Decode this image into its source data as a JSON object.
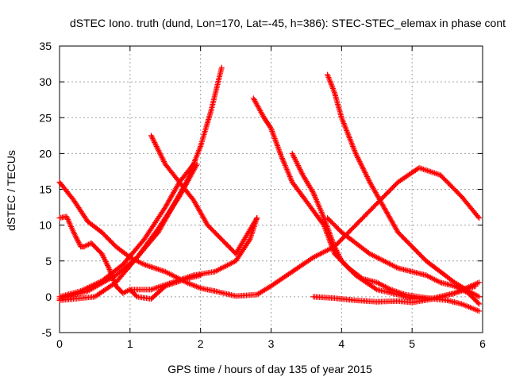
{
  "chart_data": {
    "type": "scatter",
    "title": "dSTEC Iono. truth (dund, Lon=170, Lat=-45, h=386): STEC-STEC_elemax in phase cont",
    "xlabel": "GPS time / hours of day 135 of year 2015",
    "ylabel": "dSTEC  / TECUs",
    "xlim": [
      0,
      6
    ],
    "ylim": [
      -5,
      35
    ],
    "xticks": [
      "0",
      "1",
      "2",
      "3",
      "4",
      "5",
      "6"
    ],
    "yticks": [
      "-5",
      "0",
      "5",
      "10",
      "15",
      "20",
      "25",
      "30",
      "35"
    ],
    "grid": true,
    "marker": "+",
    "color": "#ff0000",
    "series": [
      {
        "x": [
          0.0,
          0.3,
          0.6,
          0.9,
          1.2,
          1.5,
          1.7,
          1.9
        ],
        "y": [
          0.0,
          0.8,
          2.2,
          4.5,
          8.0,
          12.5,
          16.0,
          18.5
        ]
      },
      {
        "x": [
          0.0,
          0.4,
          0.8,
          1.1,
          1.4,
          1.6,
          1.8,
          2.0,
          2.15,
          2.3
        ],
        "y": [
          -0.3,
          0.8,
          3.0,
          5.5,
          9.0,
          12.5,
          16.0,
          21.0,
          26.0,
          32.0
        ]
      },
      {
        "x": [
          0.0,
          0.5,
          0.8,
          1.1,
          1.4,
          1.7,
          1.95
        ],
        "y": [
          -0.5,
          0.0,
          2.0,
          5.5,
          9.5,
          14.0,
          18.5
        ]
      },
      {
        "x": [
          0.0,
          0.1,
          0.2,
          0.3,
          0.35,
          0.45,
          0.6,
          0.7,
          0.8,
          0.9,
          1.0,
          1.1,
          1.3,
          1.5,
          1.8,
          2.0
        ],
        "y": [
          11.0,
          11.2,
          9.0,
          7.0,
          7.0,
          7.5,
          6.0,
          4.0,
          1.5,
          0.5,
          1.0,
          0.0,
          -0.3,
          1.5,
          2.5,
          3.0
        ]
      },
      {
        "x": [
          0.0,
          0.2,
          0.4,
          0.6,
          0.8,
          1.0,
          1.2,
          1.5,
          1.8,
          2.0,
          2.2,
          2.5,
          2.8,
          3.0,
          3.3,
          3.6,
          3.9,
          4.2,
          4.5,
          4.8,
          5.1,
          5.4,
          5.7,
          5.95
        ],
        "y": [
          16.0,
          13.5,
          10.5,
          9.0,
          7.0,
          5.5,
          4.5,
          3.5,
          2.0,
          1.2,
          0.8,
          0.1,
          0.3,
          1.5,
          3.5,
          5.5,
          7.0,
          10.0,
          13.0,
          16.0,
          18.0,
          17.0,
          14.0,
          11.0
        ]
      },
      {
        "x": [
          1.3,
          1.5,
          1.7,
          1.9,
          2.1,
          2.3,
          2.5,
          2.8
        ],
        "y": [
          22.5,
          18.5,
          16.0,
          13.5,
          10.0,
          8.0,
          6.0,
          11.0
        ]
      },
      {
        "x": [
          1.0,
          1.3,
          1.6,
          1.9,
          2.2,
          2.5,
          2.7,
          2.8
        ],
        "y": [
          1.0,
          1.0,
          2.0,
          3.0,
          3.5,
          5.0,
          8.0,
          11.0
        ]
      },
      {
        "x": [
          2.75,
          2.9,
          3.0,
          3.15,
          3.3,
          3.45,
          3.6,
          3.75,
          3.9,
          4.1,
          4.3,
          4.5,
          4.7,
          4.9,
          5.1,
          5.3,
          5.5,
          5.7,
          5.95
        ],
        "y": [
          27.7,
          25.0,
          23.5,
          19.5,
          16.0,
          14.0,
          12.0,
          10.0,
          6.0,
          4.0,
          2.5,
          2.0,
          1.0,
          0.3,
          0.0,
          -0.3,
          -0.5,
          -1.0,
          -2.0
        ]
      },
      {
        "x": [
          3.3,
          3.45,
          3.6,
          3.75,
          3.9,
          4.0,
          4.2,
          4.5,
          4.8,
          5.0,
          5.3,
          5.6,
          5.9
        ],
        "y": [
          20.0,
          17.0,
          14.5,
          11.0,
          7.0,
          5.0,
          3.0,
          1.0,
          0.3,
          -0.3,
          -0.2,
          0.5,
          1.5
        ]
      },
      {
        "x": [
          3.8,
          3.9,
          4.0,
          4.2,
          4.4,
          4.6,
          4.8,
          5.0,
          5.2,
          5.4,
          5.6,
          5.8,
          5.95
        ],
        "y": [
          31.0,
          28.5,
          25.0,
          20.0,
          16.0,
          12.5,
          9.0,
          7.0,
          5.0,
          3.5,
          2.0,
          0.8,
          0.0
        ]
      },
      {
        "x": [
          3.6,
          3.9,
          4.2,
          4.5,
          4.8,
          5.0,
          5.3,
          5.6,
          5.95
        ],
        "y": [
          0.0,
          -0.2,
          -0.5,
          -0.7,
          -0.6,
          -0.8,
          -0.3,
          0.5,
          2.0
        ]
      },
      {
        "x": [
          3.8,
          4.0,
          4.2,
          4.4,
          4.6,
          4.8,
          5.0,
          5.2,
          5.4,
          5.6,
          5.8,
          5.95
        ],
        "y": [
          11.0,
          9.0,
          7.5,
          6.0,
          5.0,
          4.0,
          3.5,
          3.0,
          2.0,
          1.5,
          0.5,
          -1.0
        ]
      }
    ]
  }
}
